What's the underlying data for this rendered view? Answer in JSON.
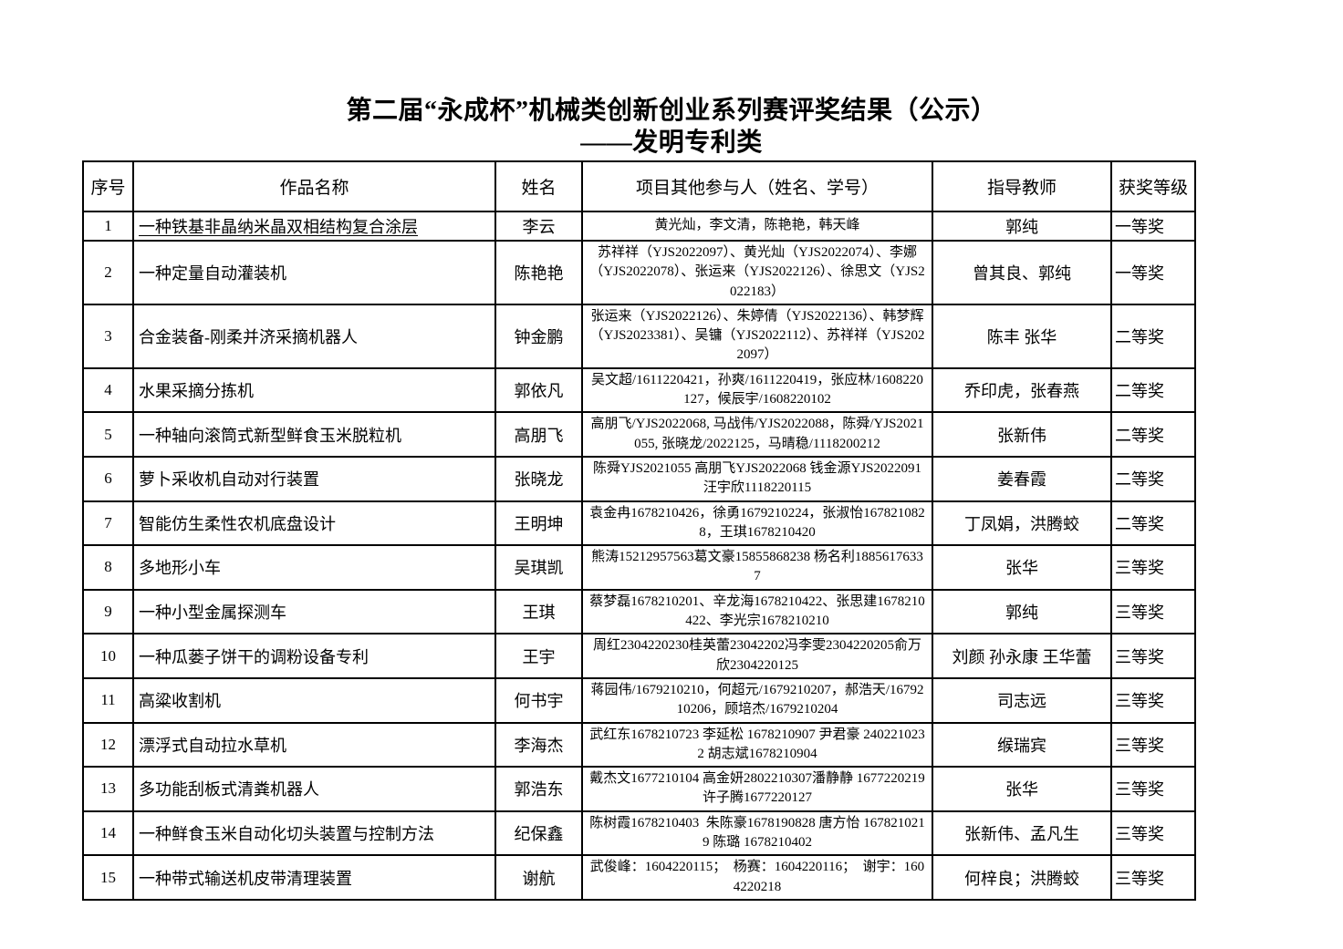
{
  "title": {
    "line1": "第二届“永成杯”机械类创新创业系列赛评奖结果（公示）",
    "line2": "——发明专利类"
  },
  "table": {
    "headers": [
      "序号",
      "作品名称",
      "姓名",
      "项目其他参与人（姓名、学号）",
      "指导教师",
      "获奖等级"
    ],
    "rows": [
      {
        "no": "1",
        "work": "一种铁基非晶纳米晶双相结构复合涂层",
        "underline_work": true,
        "name": "李云",
        "participants": "黄光灿，李文清，陈艳艳，韩天峰",
        "teacher": "郭纯",
        "award": "一等奖"
      },
      {
        "no": "2",
        "work": "一种定量自动灌装机",
        "name": "陈艳艳",
        "participants": "苏祥祥（YJS2022097）、黄光灿（YJS2022074）、李娜（YJS2022078）、张运来（YJS2022126）、徐思文（YJS2022183）",
        "teacher": "曾其良、郭纯",
        "award": "一等奖"
      },
      {
        "no": "3",
        "work": "合金装备-刚柔并济采摘机器人",
        "name": "钟金鹏",
        "participants": "张运来（YJS2022126）、朱婷倩（YJS2022136）、韩梦辉（YJS2023381）、吴镛（YJS2022112）、苏祥祥（YJS2022097）",
        "teacher": "陈丰 张华",
        "award": "二等奖"
      },
      {
        "no": "4",
        "work": "水果采摘分拣机",
        "name": "郭依凡",
        "participants": "吴文超/1611220421，孙爽/1611220419，张应林/1608220127，候辰宇/1608220102",
        "teacher": "乔印虎，张春燕",
        "award": "二等奖"
      },
      {
        "no": "5",
        "work": "一种轴向滚筒式新型鲜食玉米脱粒机",
        "name": "高朋飞",
        "participants": "高朋飞/YJS2022068, 马战伟/YJS2022088，陈舜/YJS2021055, 张晓龙/2022125，马晴稳/1118200212",
        "teacher": "张新伟",
        "award": "二等奖"
      },
      {
        "no": "6",
        "work": "萝卜采收机自动对行装置",
        "name": "张晓龙",
        "participants": "陈舜YJS2021055 高朋飞YJS2022068 钱金源YJS2022091 汪宇欣1118220115",
        "teacher": "姜春霞",
        "award": "二等奖"
      },
      {
        "no": "7",
        "work": "智能仿生柔性农机底盘设计",
        "name": "王明坤",
        "participants": "袁金冉1678210426，徐勇1679210224，张淑怡1678210828，王琪1678210420",
        "teacher": "丁凤娟，洪腾蛟",
        "award": "二等奖"
      },
      {
        "no": "8",
        "work": "多地形小车",
        "name": "吴琪凯",
        "participants": "熊涛15212957563葛文豪15855868238 杨名利18856176337",
        "teacher": "张华",
        "award": "三等奖"
      },
      {
        "no": "9",
        "work": "一种小型金属探测车",
        "name": "王琪",
        "participants": "蔡梦磊1678210201、辛龙海1678210422、张思建1678210422、李光宗1678210210",
        "teacher": "郭纯",
        "award": "三等奖"
      },
      {
        "no": "10",
        "work": "一种瓜蒌子饼干的调粉设备专利",
        "name": "王宇",
        "participants": "周红2304220230桂英蕾23042202冯李雯2304220205俞万欣2304220125",
        "teacher": "刘颜 孙永康 王华蕾",
        "award": "三等奖"
      },
      {
        "no": "11",
        "work": "高粱收割机",
        "name": "何书宇",
        "participants": "蒋园伟/1679210210，何超元/1679210207，郝浩天/1679210206，顾培杰/1679210204",
        "teacher": "司志远",
        "award": "三等奖"
      },
      {
        "no": "12",
        "work": "漂浮式自动拉水草机",
        "name": "李海杰",
        "participants": "武红东1678210723 李延松 1678210907 尹君豪 2402210232 胡志斌1678210904",
        "teacher": "缑瑞宾",
        "award": "三等奖"
      },
      {
        "no": "13",
        "work": "多功能刮板式清粪机器人",
        "name": "郭浩东",
        "participants": "戴杰文1677210104 高金妍2802210307潘静静 1677220219 许子腾1677220127",
        "teacher": "张华",
        "award": "三等奖"
      },
      {
        "no": "14",
        "work": "一种鲜食玉米自动化切头装置与控制方法",
        "name": "纪保鑫",
        "participants": "陈树霞1678210403  朱陈豪1678190828 唐方怡 1678210219 陈璐 1678210402",
        "teacher": "张新伟、孟凡生",
        "award": "三等奖"
      },
      {
        "no": "15",
        "work": "一种带式输送机皮带清理装置",
        "name": "谢航",
        "participants": "武俊峰：1604220115；  杨赛：1604220116；  谢宇：1604220218",
        "teacher": "何梓良；洪腾蛟",
        "award": "三等奖"
      }
    ]
  }
}
